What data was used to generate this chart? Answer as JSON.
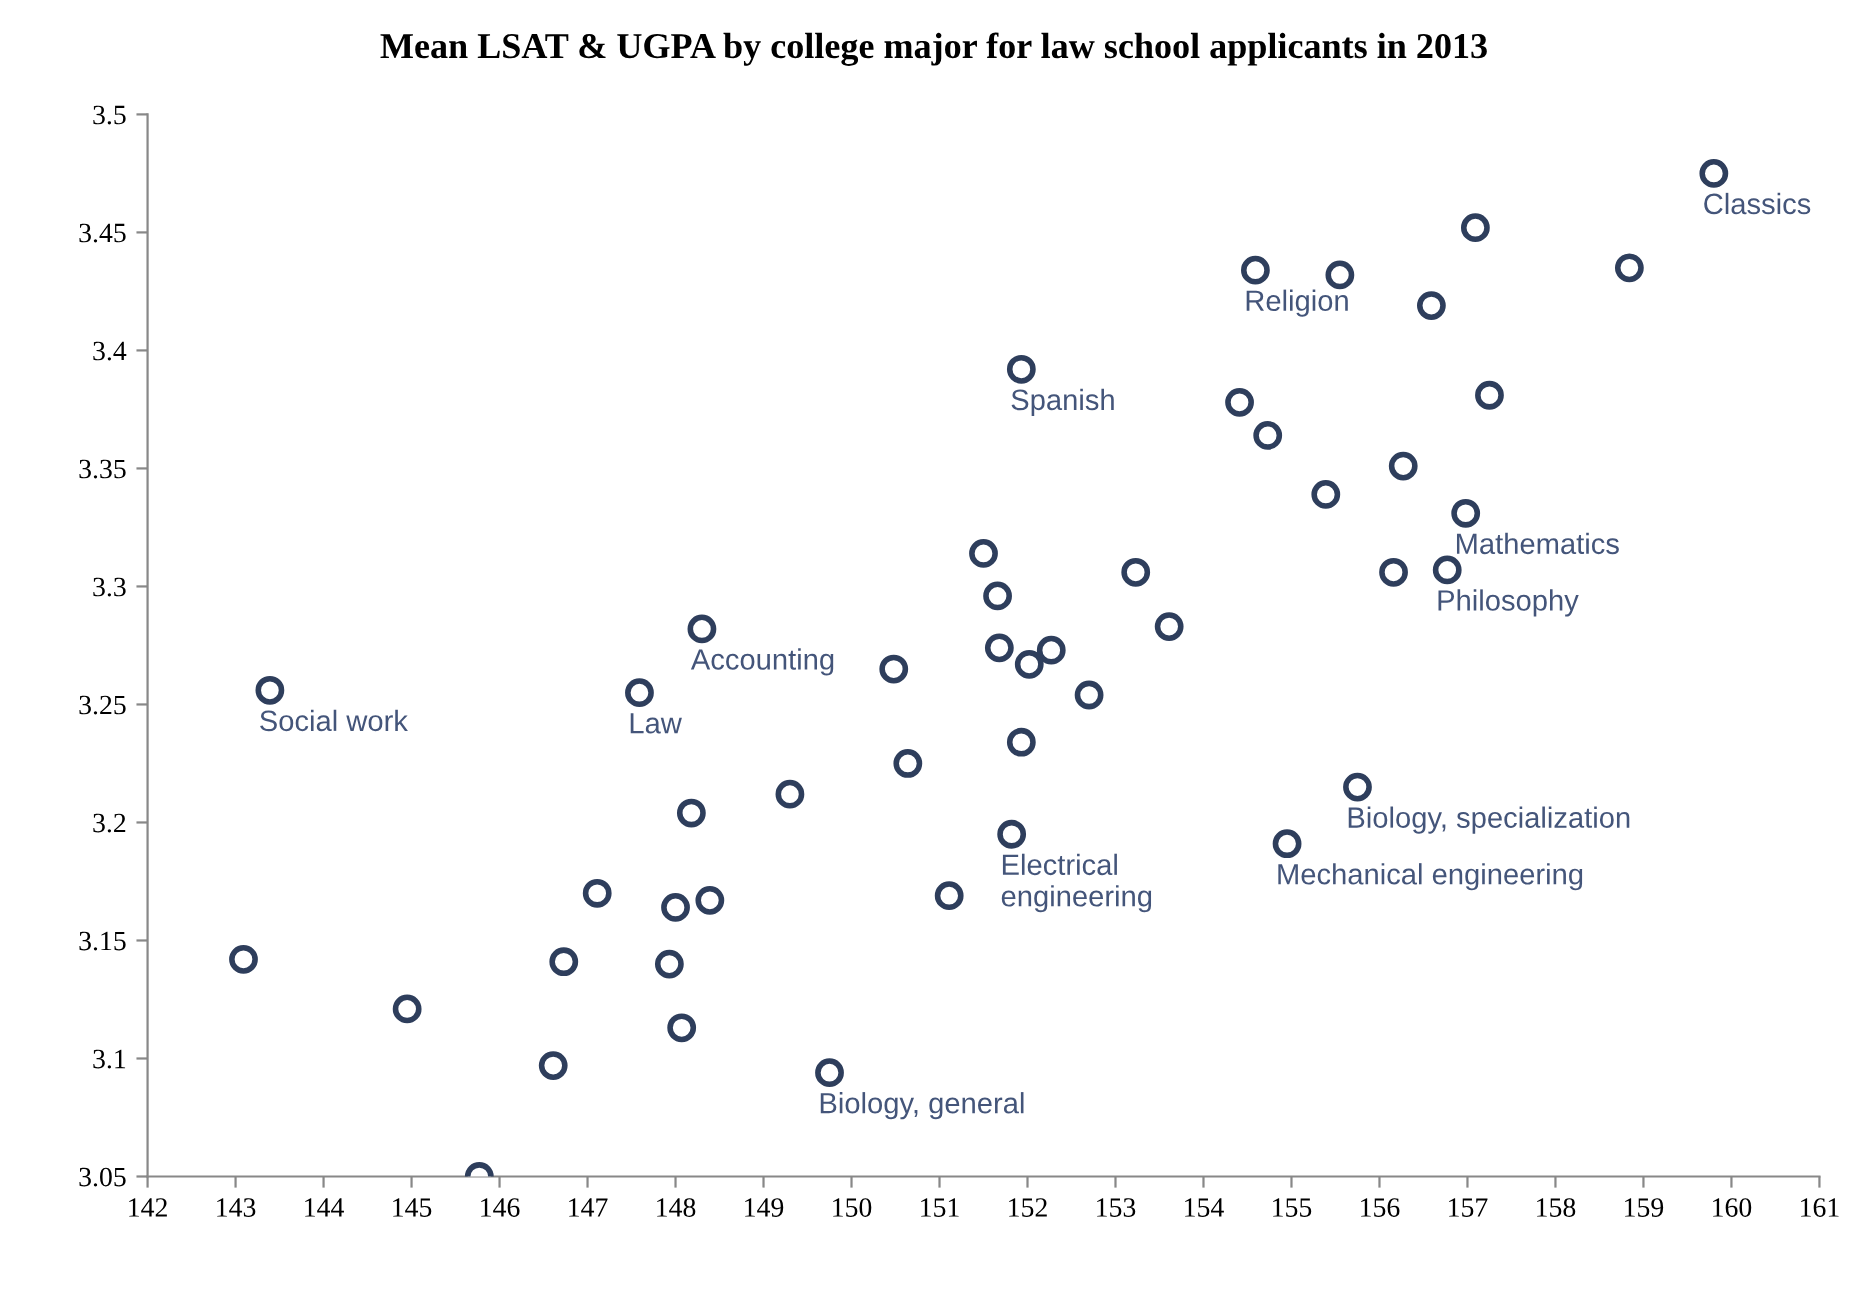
{
  "chart_data": {
    "type": "scatter",
    "title": "Mean LSAT & UGPA by college major for law school applicants in 2013",
    "x": [
      159.8,
      157.09,
      154.59,
      155.55,
      158.84,
      156.59,
      151.93,
      154.41,
      154.73,
      157.25,
      156.27,
      155.39,
      156.98,
      151.5,
      151.66,
      153.23,
      156.16,
      156.77,
      153.61,
      148.3,
      151.68,
      152.27,
      152.02,
      150.48,
      152.7,
      143.39,
      147.59,
      150.64,
      151.93,
      155.75,
      148.18,
      149.3,
      151.82,
      154.95,
      147.11,
      151.11,
      148.0,
      148.39,
      143.09,
      146.73,
      147.93,
      144.95,
      148.07,
      146.61,
      149.75,
      145.77
    ],
    "series": [
      {
        "color": "#2e3e5c",
        "values": [
          3.475,
          3.452,
          3.434,
          3.432,
          3.435,
          3.419,
          3.392,
          3.378,
          3.364,
          3.381,
          3.351,
          3.339,
          3.331,
          3.314,
          3.296,
          3.306,
          3.306,
          3.307,
          3.283,
          3.282,
          3.274,
          3.273,
          3.267,
          3.265,
          3.254,
          3.256,
          3.255,
          3.225,
          3.234,
          3.215,
          3.204,
          3.212,
          3.195,
          3.191,
          3.17,
          3.169,
          3.164,
          3.167,
          3.142,
          3.141,
          3.14,
          3.121,
          3.113,
          3.097,
          3.094,
          3.05
        ]
      }
    ],
    "marker": "circle",
    "xlim": [
      142,
      161
    ],
    "xticks": [
      142,
      143,
      144,
      145,
      146,
      147,
      148,
      149,
      150,
      151,
      152,
      153,
      154,
      155,
      156,
      157,
      158,
      159,
      160,
      161
    ],
    "ylim": [
      3.05,
      3.5
    ],
    "yticks": [
      3.05,
      3.1,
      3.15,
      3.2,
      3.25,
      3.3,
      3.35,
      3.4,
      3.45,
      3.5
    ],
    "grid": false,
    "annotations": [
      {
        "text": "Classics",
        "x": 159.8,
        "y": 3.475
      },
      {
        "text": "Religion",
        "x": 154.59,
        "y": 3.434
      },
      {
        "text": "Spanish",
        "x": 151.93,
        "y": 3.392
      },
      {
        "text": "Mathematics",
        "x": 156.98,
        "y": 3.331
      },
      {
        "text": "Philosophy",
        "x": 156.77,
        "y": 3.307
      },
      {
        "text": "Accounting",
        "x": 148.3,
        "y": 3.282
      },
      {
        "text": "Social work",
        "x": 143.39,
        "y": 3.256
      },
      {
        "text": "Law",
        "x": 147.59,
        "y": 3.255
      },
      {
        "text": "Biology, specialization",
        "x": 155.75,
        "y": 3.215
      },
      {
        "text": "Electrical\nengineering",
        "x": 151.82,
        "y": 3.195
      },
      {
        "text": "Mechanical engineering",
        "x": 154.95,
        "y": 3.191
      },
      {
        "text": "Biology, general",
        "x": 149.75,
        "y": 3.094
      }
    ]
  }
}
